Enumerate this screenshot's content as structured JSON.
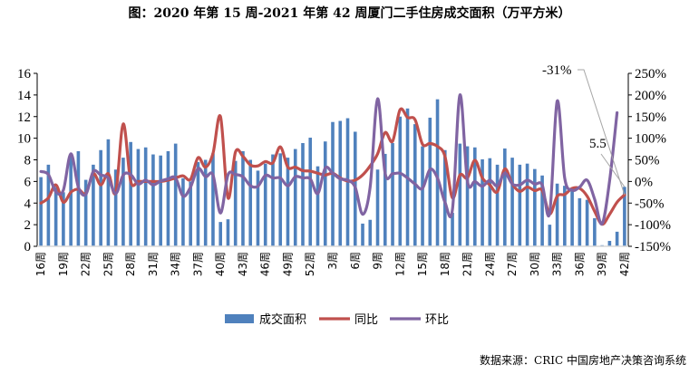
{
  "title": "图：2020 年第 15 周-2021 年第 42 周厦门二手住房成交面积（万平方米）",
  "source": "数据来源：CRIC 中国房地产决策咨询系统",
  "colors": {
    "bar": "#4f81bd",
    "yoy": "#c0504d",
    "mom": "#8064a2",
    "leader": "#a6a6a6"
  },
  "chart_data": {
    "type": "bar+line",
    "title": "图：2020 年第 15 周-2021 年第 42 周厦门二手住房成交面积（万平方米）",
    "categories": [
      "16周",
      "17周",
      "18周",
      "19周",
      "20周",
      "21周",
      "22周",
      "23周",
      "24周",
      "25周",
      "26周",
      "27周",
      "28周",
      "29周",
      "30周",
      "31周",
      "32周",
      "33周",
      "34周",
      "35周",
      "36周",
      "37周",
      "38周",
      "39周",
      "40周",
      "41周",
      "42周",
      "43周",
      "44周",
      "45周",
      "46周",
      "47周",
      "48周",
      "49周",
      "50周",
      "51周",
      "52周",
      "1周",
      "2周",
      "3周",
      "4周",
      "5周",
      "6周",
      "7周",
      "8周",
      "9周",
      "10周",
      "11周",
      "12周",
      "13周",
      "14周",
      "15周",
      "16周",
      "17周",
      "18周",
      "19周",
      "20周",
      "21周",
      "22周",
      "23周",
      "24周",
      "25周",
      "26周",
      "27周",
      "28周",
      "29周",
      "30周",
      "31周",
      "32周",
      "33周",
      "34周",
      "35周",
      "36周",
      "37周",
      "38周",
      "39周",
      "40周",
      "41周",
      "42周"
    ],
    "tick_label_every": 3,
    "left_axis": {
      "ylim": [
        0,
        16
      ],
      "ticks": [
        "0",
        "2",
        "4",
        "6",
        "8",
        "10",
        "12",
        "14",
        "16"
      ]
    },
    "right_axis": {
      "ylim": [
        -150,
        250
      ],
      "ticks": [
        "-150%",
        "-100%",
        "-50%",
        "0%",
        "50%",
        "100%",
        "150%",
        "200%",
        "250%"
      ]
    },
    "series": [
      {
        "name": "成交面积",
        "type": "bar",
        "axis": "left",
        "values": [
          6.4,
          7.55,
          5.5,
          5.0,
          8.5,
          8.8,
          6.15,
          7.55,
          8.9,
          9.9,
          7.1,
          8.2,
          9.65,
          9.0,
          9.15,
          8.5,
          8.4,
          8.8,
          9.5,
          6.3,
          6.0,
          7.8,
          8.0,
          8.6,
          2.25,
          2.5,
          7.9,
          8.8,
          8.0,
          7.0,
          7.65,
          8.5,
          8.6,
          8.2,
          9.0,
          9.55,
          10.05,
          7.4,
          9.7,
          11.5,
          11.6,
          11.85,
          10.6,
          2.1,
          2.45,
          7.1,
          8.55,
          9.55,
          12.0,
          12.75,
          11.3,
          9.25,
          11.9,
          13.6,
          8.9,
          3.1,
          9.5,
          9.25,
          9.15,
          8.05,
          8.15,
          7.55,
          9.05,
          8.2,
          7.55,
          7.65,
          7.15,
          6.55,
          2.0,
          5.8,
          5.6,
          5.3,
          4.45,
          4.3,
          2.6,
          0.1,
          0.5,
          1.35,
          5.5
        ]
      },
      {
        "name": "同比",
        "type": "line",
        "axis": "right",
        "values": [
          -50,
          -38,
          -8,
          -48,
          -25,
          -18,
          -28,
          18,
          -8,
          18,
          -25,
          133,
          0,
          0,
          0,
          0,
          0,
          3,
          8,
          13,
          5,
          55,
          33,
          65,
          150,
          -38,
          68,
          58,
          38,
          36,
          46,
          43,
          80,
          33,
          33,
          25,
          24,
          19,
          15,
          19,
          8,
          1,
          3,
          15,
          36,
          64,
          113,
          93,
          166,
          148,
          143,
          86,
          88,
          81,
          58,
          -38,
          15,
          8,
          49,
          8,
          -8,
          -24,
          29,
          -6,
          -23,
          -13,
          -21,
          -21,
          -75,
          -34,
          -30,
          -16,
          -16,
          -34,
          -69,
          -99,
          -76,
          -48,
          -31
        ]
      },
      {
        "name": "环比",
        "type": "line",
        "axis": "right",
        "values": [
          23,
          16,
          -24,
          -20,
          64,
          -13,
          -30,
          23,
          15,
          8,
          -28,
          15,
          16,
          -6,
          3,
          -8,
          1,
          6,
          8,
          -34,
          -13,
          30,
          11,
          15,
          -73,
          15,
          16,
          11,
          -10,
          -11,
          14,
          8,
          8,
          -10,
          11,
          8,
          6,
          -28,
          31,
          19,
          6,
          3,
          -13,
          -76,
          -13,
          191,
          19,
          18,
          19,
          8,
          -6,
          -16,
          28,
          8,
          -48,
          -65,
          200,
          1,
          0,
          -11,
          3,
          -10,
          19,
          -6,
          -8,
          3,
          -6,
          -8,
          -73,
          186,
          8,
          -20,
          -13,
          3,
          -41,
          -98,
          1,
          159,
          null
        ]
      }
    ],
    "annotations": [
      {
        "text": "-31%",
        "series": "同比",
        "category": "42周"
      },
      {
        "text": "5.5",
        "series": "成交面积",
        "category": "42周"
      }
    ],
    "legend": {
      "placement": "bottom",
      "entries": [
        "成交面积",
        "同比",
        "环比"
      ]
    },
    "grid": false
  }
}
